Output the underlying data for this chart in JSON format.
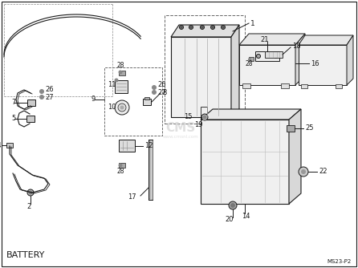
{
  "title": "BATTERY",
  "page_code": "MS23-P2",
  "bg_color": "#ffffff",
  "line_color": "#1a1a1a",
  "gray1": "#cccccc",
  "gray2": "#999999",
  "gray3": "#666666",
  "figsize": [
    4.46,
    3.34
  ],
  "dpi": 100,
  "title_fontsize": 8,
  "label_fontsize": 6,
  "code_fontsize": 5
}
